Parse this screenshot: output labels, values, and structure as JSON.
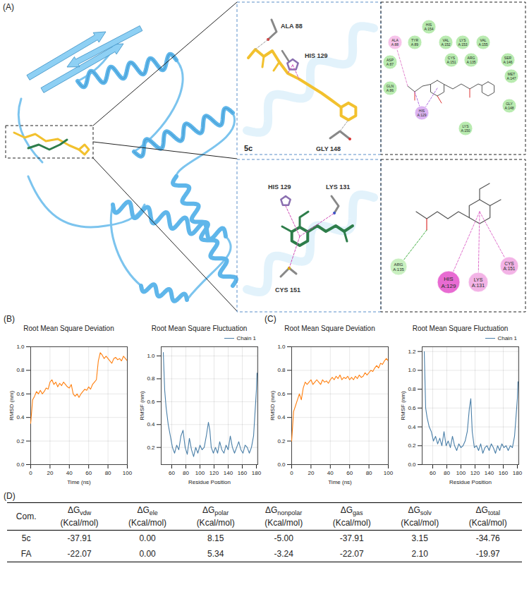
{
  "panel_labels": [
    "(A)",
    "(B)",
    "(C)",
    "(D)"
  ],
  "panel_a": {
    "docking_5c": {
      "ligand": "5c",
      "ligand_color": "#f2c12e",
      "residues": [
        "ALA 88",
        "HIS 129",
        "GLY 148"
      ]
    },
    "docking_fa": {
      "ligand_color": "#2e7d4a",
      "residues": [
        "HIS 129",
        "LYS 131",
        "CYS 151"
      ]
    },
    "diagram_5c": {
      "residues": [
        {
          "label": "HIS A:154",
          "color": "#b9ebb0"
        },
        {
          "label": "ALA A:88",
          "color": "#f7c3ea"
        },
        {
          "label": "TYR A:89",
          "color": "#b9ebb0"
        },
        {
          "label": "VAL A:152",
          "color": "#b9ebb0"
        },
        {
          "label": "LYS A:153",
          "color": "#b9ebb0"
        },
        {
          "label": "VAL A:155",
          "color": "#b9ebb0"
        },
        {
          "label": "ASP A:87",
          "color": "#b9ebb0"
        },
        {
          "label": "CYS A:151",
          "color": "#b9ebb0"
        },
        {
          "label": "ARG A:135",
          "color": "#b9ebb0"
        },
        {
          "label": "SER A:146",
          "color": "#b9ebb0"
        },
        {
          "label": "MET A:147",
          "color": "#b9ebb0"
        },
        {
          "label": "GLN A:86",
          "color": "#b9ebb0"
        },
        {
          "label": "HIS A:129",
          "color": "#dcb3f2"
        },
        {
          "label": "GLY A:148",
          "color": "#b9ebb0"
        },
        {
          "label": "LYS A:150",
          "color": "#b9ebb0"
        }
      ]
    },
    "diagram_fa": {
      "residues": [
        {
          "label": "ARG A:135",
          "color": "#c9f0c0"
        },
        {
          "label": "HIS A:129",
          "color": "#e86bd2"
        },
        {
          "label": "LYS A:131",
          "color": "#f3b3e6"
        },
        {
          "label": "CYS A:151",
          "color": "#f3b3e6"
        }
      ]
    }
  },
  "chart_data": [
    {
      "type": "line",
      "title": "Root Mean Square Deviation",
      "x_label": "Time (ns)",
      "y_label": "RMSD (nm)",
      "x": [
        0,
        2,
        4,
        6,
        8,
        10,
        12,
        14,
        16,
        18,
        20,
        22,
        24,
        26,
        28,
        30,
        32,
        34,
        36,
        38,
        40,
        42,
        44,
        46,
        48,
        50,
        52,
        54,
        56,
        58,
        60,
        62,
        64,
        66,
        68,
        70,
        72,
        74,
        76,
        78,
        80,
        82,
        84,
        86,
        88,
        90,
        92,
        94,
        96,
        98,
        100
      ],
      "values": [
        0.35,
        0.55,
        0.58,
        0.62,
        0.6,
        0.63,
        0.6,
        0.62,
        0.65,
        0.64,
        0.7,
        0.72,
        0.68,
        0.7,
        0.66,
        0.69,
        0.67,
        0.7,
        0.68,
        0.66,
        0.65,
        0.68,
        0.6,
        0.58,
        0.6,
        0.57,
        0.6,
        0.62,
        0.64,
        0.63,
        0.66,
        0.64,
        0.68,
        0.7,
        0.72,
        0.88,
        0.95,
        0.93,
        0.9,
        0.92,
        0.9,
        0.88,
        0.86,
        0.9,
        0.91,
        0.89,
        0.9,
        0.88,
        0.92,
        0.9,
        0.88
      ],
      "color": "#ff7f0e",
      "xlim": [
        0,
        100
      ],
      "ylim": [
        0,
        1
      ],
      "xticks": [
        0,
        20,
        40,
        60,
        80,
        100
      ],
      "yticks": [
        {
          "value": 0,
          "label": "0.0"
        },
        0.2,
        0.4,
        0.6,
        0.8,
        {
          "value": 1,
          "label": "1.0"
        }
      ],
      "grid": true
    },
    {
      "type": "line",
      "title": "Root Mean Square Fluctuation",
      "x_label": "Residue Position",
      "y_label": "RMSF (nm)",
      "x": [
        48,
        50,
        52,
        55,
        58,
        61,
        64,
        67,
        70,
        73,
        76,
        79,
        82,
        85,
        88,
        91,
        94,
        97,
        100,
        103,
        106,
        109,
        112,
        114,
        116,
        119,
        122,
        125,
        128,
        131,
        134,
        137,
        140,
        143,
        146,
        149,
        152,
        155,
        158,
        161,
        164,
        167,
        170,
        173,
        176,
        178,
        180,
        181
      ],
      "series": [
        {
          "name": "Chain 1",
          "color": "#4a7fa8",
          "values": [
            1.03,
            0.7,
            0.55,
            0.4,
            0.3,
            0.2,
            0.15,
            0.22,
            0.18,
            0.3,
            0.35,
            0.2,
            0.14,
            0.28,
            0.18,
            0.12,
            0.2,
            0.15,
            0.22,
            0.18,
            0.2,
            0.3,
            0.42,
            0.35,
            0.2,
            0.15,
            0.2,
            0.15,
            0.25,
            0.18,
            0.15,
            0.22,
            0.18,
            0.3,
            0.2,
            0.15,
            0.2,
            0.25,
            0.18,
            0.15,
            0.22,
            0.2,
            0.15,
            0.2,
            0.3,
            0.5,
            0.7,
            0.85
          ]
        }
      ],
      "xlim": [
        45,
        182
      ],
      "ylim": [
        0.05,
        1.08
      ],
      "xticks": [
        60,
        80,
        100,
        120,
        140,
        160,
        180
      ],
      "yticks": [
        0.2,
        0.4,
        0.6,
        0.8,
        {
          "value": 1,
          "label": "1.0"
        }
      ],
      "grid": true,
      "legend": "top-right"
    },
    {
      "type": "line",
      "title": "Root Mean Square Deviation",
      "x_label": "Time (ns)",
      "y_label": "RMSD (nm)",
      "x": [
        0,
        2,
        4,
        6,
        8,
        10,
        12,
        14,
        16,
        18,
        20,
        22,
        24,
        26,
        28,
        30,
        32,
        34,
        36,
        38,
        40,
        42,
        44,
        46,
        48,
        50,
        52,
        54,
        56,
        58,
        60,
        62,
        64,
        66,
        68,
        70,
        72,
        74,
        76,
        78,
        80,
        82,
        84,
        86,
        88,
        90,
        92,
        94,
        96,
        98,
        100
      ],
      "values": [
        0.2,
        0.45,
        0.5,
        0.55,
        0.6,
        0.55,
        0.65,
        0.7,
        0.68,
        0.7,
        0.72,
        0.68,
        0.7,
        0.72,
        0.7,
        0.68,
        0.72,
        0.7,
        0.71,
        0.69,
        0.72,
        0.74,
        0.72,
        0.75,
        0.73,
        0.76,
        0.72,
        0.74,
        0.73,
        0.75,
        0.72,
        0.74,
        0.72,
        0.75,
        0.73,
        0.76,
        0.74,
        0.75,
        0.78,
        0.76,
        0.78,
        0.8,
        0.79,
        0.82,
        0.84,
        0.82,
        0.86,
        0.85,
        0.88,
        0.9,
        0.88
      ],
      "color": "#ff7f0e",
      "xlim": [
        0,
        100
      ],
      "ylim": [
        0,
        1
      ],
      "xticks": [
        0,
        20,
        40,
        60,
        80,
        100
      ],
      "yticks": [
        {
          "value": 0,
          "label": "0.0"
        },
        0.2,
        0.4,
        0.6,
        0.8,
        {
          "value": 1,
          "label": "1.0"
        }
      ],
      "grid": true
    },
    {
      "type": "line",
      "title": "Root Mean Square Fluctuation",
      "x_label": "Residue Position",
      "y_label": "RMSF (nm)",
      "x": [
        48,
        50,
        52,
        55,
        58,
        61,
        64,
        67,
        70,
        73,
        76,
        79,
        82,
        85,
        88,
        91,
        94,
        97,
        100,
        103,
        106,
        109,
        112,
        114,
        116,
        119,
        122,
        125,
        128,
        131,
        134,
        137,
        140,
        143,
        146,
        149,
        152,
        155,
        158,
        161,
        164,
        167,
        170,
        173,
        176,
        178,
        180,
        181
      ],
      "series": [
        {
          "name": "Chain 1",
          "color": "#4a7fa8",
          "values": [
            1.2,
            0.6,
            0.5,
            0.4,
            0.35,
            0.25,
            0.3,
            0.22,
            0.28,
            0.2,
            0.35,
            0.2,
            0.25,
            0.18,
            0.3,
            0.2,
            0.15,
            0.22,
            0.18,
            0.2,
            0.25,
            0.35,
            0.6,
            0.7,
            0.35,
            0.18,
            0.2,
            0.15,
            0.22,
            0.12,
            0.18,
            0.2,
            0.15,
            0.22,
            0.18,
            0.12,
            0.2,
            0.15,
            0.22,
            0.18,
            0.2,
            0.15,
            0.2,
            0.18,
            0.3,
            0.5,
            0.7,
            0.88
          ]
        }
      ],
      "xlim": [
        45,
        182
      ],
      "ylim": [
        0,
        1.25
      ],
      "xticks": [
        60,
        80,
        100,
        120,
        140,
        160,
        180
      ],
      "yticks": [
        {
          "value": 0,
          "label": "0.0"
        },
        0.2,
        0.4,
        0.6,
        0.8,
        {
          "value": 1,
          "label": "1.0"
        },
        1.2
      ],
      "grid": true,
      "legend": "top-right"
    }
  ],
  "table": {
    "columns": [
      {
        "text": "Com."
      },
      {
        "symbol": "ΔG",
        "subscript": "vdw",
        "unit": "(Kcal/mol)"
      },
      {
        "symbol": "ΔG",
        "subscript": "ele",
        "unit": "(Kcal/mol)"
      },
      {
        "symbol": "ΔG",
        "subscript": "polar",
        "unit": "(Kcal/mol)"
      },
      {
        "symbol": "ΔG",
        "subscript": "nonpolar",
        "unit": "(Kcal/mol)"
      },
      {
        "symbol": "ΔG",
        "subscript": "gas",
        "unit": "(Kcal/mol)"
      },
      {
        "symbol": "ΔG",
        "subscript": "solv",
        "unit": "(Kcal/mol)"
      },
      {
        "symbol": "ΔG",
        "subscript": "total",
        "unit": "(Kcal/mol)"
      }
    ],
    "rows": [
      [
        "5c",
        "-37.91",
        "0.00",
        "8.15",
        "-5.00",
        "-37.91",
        "3.15",
        "-34.76"
      ],
      [
        "FA",
        "-22.07",
        "0.00",
        "5.34",
        "-3.24",
        "-22.07",
        "2.10",
        "-19.97"
      ]
    ]
  }
}
